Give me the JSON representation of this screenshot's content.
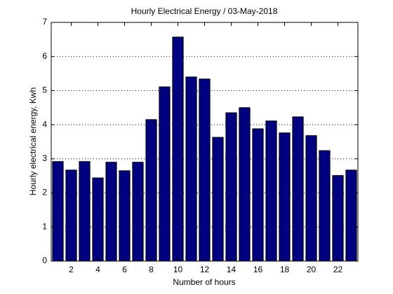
{
  "chart_data": {
    "type": "bar",
    "title": "Hourly Electrical Energy / 03-May-2018",
    "xlabel": "Number of hours",
    "ylabel": "Hourly electrical energy, Kwh",
    "x": [
      1,
      2,
      3,
      4,
      5,
      6,
      7,
      8,
      9,
      10,
      11,
      12,
      13,
      14,
      15,
      16,
      17,
      18,
      19,
      20,
      21,
      22,
      23
    ],
    "values": [
      2.92,
      2.67,
      2.92,
      2.44,
      2.9,
      2.65,
      2.9,
      4.15,
      5.11,
      6.57,
      5.4,
      5.34,
      3.63,
      4.35,
      4.5,
      3.88,
      4.11,
      3.76,
      4.23,
      3.68,
      3.24,
      2.51,
      2.67
    ],
    "color": "#000080",
    "xlim": [
      0.5,
      23.5
    ],
    "xticks": [
      2,
      4,
      6,
      8,
      10,
      12,
      14,
      16,
      18,
      20,
      22
    ],
    "ylim": [
      0,
      7
    ],
    "yticks": [
      0,
      1,
      2,
      3,
      4,
      5,
      6,
      7
    ],
    "grid": "y"
  }
}
